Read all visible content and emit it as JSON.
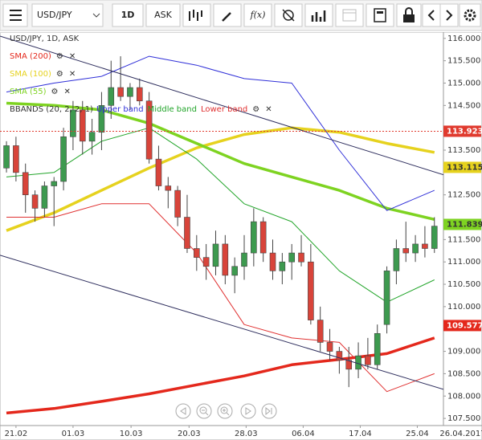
{
  "toolbar": {
    "symbol": "USD/JPY",
    "timeframe": "1D",
    "side": "ASK",
    "function": "f(x)"
  },
  "chart_data": {
    "type": "candlestick",
    "title": "USD/JPY, 1D, ASK",
    "xlim": [
      -0.68,
      45.95
    ],
    "ylim": [
      107.34,
      116.14
    ],
    "xticks": [
      {
        "value": 1,
        "label": "21.02"
      },
      {
        "value": 7,
        "label": "01.03"
      },
      {
        "value": 13.1,
        "label": "10.03"
      },
      {
        "value": 19.2,
        "label": "20.03"
      },
      {
        "value": 25.2,
        "label": "28.03"
      },
      {
        "value": 31.2,
        "label": "06.04"
      },
      {
        "value": 37.2,
        "label": "17.04"
      },
      {
        "value": 43.2,
        "label": "25.04"
      }
    ],
    "end_date": "26.04.2017",
    "yticks": [
      {
        "value": 107.5,
        "label": "107.500"
      },
      {
        "value": 108,
        "label": "108.000"
      },
      {
        "value": 108.5,
        "label": "108.500"
      },
      {
        "value": 109,
        "label": "109.000"
      },
      {
        "value": 110,
        "label": "110.000"
      },
      {
        "value": 110.5,
        "label": "110.500"
      },
      {
        "value": 111,
        "label": "111.000"
      },
      {
        "value": 111.5,
        "label": "111.500"
      },
      {
        "value": 112.5,
        "label": "112.500"
      },
      {
        "value": 113.5,
        "label": "113.500"
      },
      {
        "value": 114.5,
        "label": "114.500"
      },
      {
        "value": 115,
        "label": "115.000"
      },
      {
        "value": 115.5,
        "label": "115.500"
      },
      {
        "value": 116,
        "label": "116.000"
      }
    ],
    "up_color": "#3d9a4f",
    "down_color": "#d8443a",
    "open": [
      113.1,
      113.6,
      113.0,
      112.5,
      112.2,
      112.7,
      112.8,
      113.8,
      114.4,
      113.7,
      113.9,
      114.5,
      114.9,
      114.7,
      114.9,
      114.6,
      113.3,
      112.7,
      112.6,
      112.0,
      111.3,
      111.1,
      110.9,
      111.4,
      110.7,
      110.9,
      111.2,
      111.9,
      111.2,
      110.8,
      111.0,
      111.2,
      111.0,
      109.7,
      109.2,
      109.0,
      108.8,
      108.6,
      108.9,
      108.7,
      109.6,
      110.8,
      111.3,
      111.2,
      111.4,
      111.3
    ],
    "high": [
      113.7,
      113.8,
      113.2,
      112.6,
      112.8,
      112.9,
      114.0,
      114.6,
      114.6,
      114.2,
      114.8,
      115.5,
      115.6,
      115.0,
      115.1,
      114.8,
      113.6,
      112.9,
      112.7,
      112.5,
      111.6,
      111.4,
      111.7,
      111.6,
      111.1,
      111.6,
      112.2,
      112.0,
      111.5,
      111.2,
      111.4,
      111.6,
      111.4,
      110.0,
      109.5,
      109.1,
      109.1,
      109.2,
      109.3,
      109.6,
      110.9,
      111.5,
      111.9,
      111.6,
      111.8,
      112.0
    ],
    "low": [
      113.0,
      112.8,
      112.1,
      111.9,
      112.0,
      111.8,
      112.6,
      113.5,
      113.4,
      113.4,
      113.5,
      114.2,
      114.6,
      114.4,
      114.5,
      113.2,
      112.6,
      112.2,
      111.8,
      111.2,
      110.8,
      110.6,
      110.7,
      110.5,
      110.3,
      110.6,
      110.9,
      111.0,
      110.6,
      110.5,
      110.6,
      110.9,
      109.6,
      109.0,
      108.8,
      108.5,
      108.2,
      108.4,
      108.6,
      108.6,
      109.4,
      110.5,
      111.0,
      111.0,
      111.1,
      111.2
    ],
    "close": [
      113.6,
      113.0,
      112.5,
      112.2,
      112.7,
      112.8,
      113.8,
      114.4,
      113.7,
      113.9,
      114.5,
      114.9,
      114.7,
      114.9,
      114.6,
      113.3,
      112.7,
      112.6,
      112.0,
      111.3,
      111.1,
      110.9,
      111.4,
      110.7,
      110.9,
      111.2,
      111.9,
      111.2,
      110.8,
      111.0,
      111.2,
      111.0,
      109.7,
      109.2,
      109.0,
      108.8,
      108.6,
      108.9,
      108.7,
      109.4,
      110.8,
      111.3,
      111.2,
      111.4,
      111.3,
      111.8
    ],
    "indicators": [
      {
        "name": "SMA (200)",
        "color": "#e4281c",
        "x": [
          0,
          5,
          10,
          15,
          20,
          25,
          30,
          35,
          40,
          45
        ],
        "values": [
          107.62,
          107.72,
          107.88,
          108.05,
          108.25,
          108.45,
          108.7,
          108.82,
          108.95,
          109.3
        ]
      },
      {
        "name": "SMA (100)",
        "color": "#e6d21e",
        "x": [
          0,
          5,
          10,
          15,
          20,
          25,
          30,
          35,
          40,
          45
        ],
        "values": [
          111.7,
          112.1,
          112.6,
          113.1,
          113.55,
          113.85,
          114.0,
          113.9,
          113.65,
          113.45
        ]
      },
      {
        "name": "SMA (55)",
        "color": "#7ed321",
        "x": [
          0,
          5,
          10,
          15,
          20,
          25,
          30,
          35,
          40,
          45
        ],
        "values": [
          114.55,
          114.5,
          114.4,
          114.1,
          113.65,
          113.2,
          112.9,
          112.6,
          112.2,
          111.95
        ]
      }
    ],
    "bbands": {
      "name": "BBANDS (20, 2, 2, 1)",
      "series": [
        {
          "name": "Upper band",
          "color": "#3030d8",
          "x": [
            0,
            5,
            10,
            15,
            20,
            25,
            30,
            35,
            40,
            45
          ],
          "values": [
            114.8,
            115.0,
            115.15,
            115.6,
            115.4,
            115.1,
            115.0,
            113.5,
            112.15,
            112.6
          ]
        },
        {
          "name": "Middle band",
          "color": "#22a52a",
          "x": [
            0,
            5,
            10,
            15,
            20,
            25,
            30,
            35,
            40,
            45
          ],
          "values": [
            112.9,
            113.0,
            113.7,
            114.0,
            113.3,
            112.3,
            111.9,
            110.8,
            110.1,
            110.6
          ]
        },
        {
          "name": "Lower band",
          "color": "#e03030",
          "x": [
            0,
            5,
            10,
            15,
            20,
            25,
            30,
            35,
            40,
            45
          ],
          "values": [
            112.0,
            112.0,
            112.3,
            112.3,
            111.2,
            109.6,
            109.3,
            109.2,
            108.1,
            108.5
          ]
        }
      ]
    },
    "trendlines": [
      {
        "color": "#2f2f5e",
        "x": [
          -0.68,
          45.95
        ],
        "values": [
          116.05,
          112.95
        ]
      },
      {
        "color": "#2f2f5e",
        "x": [
          -0.68,
          45.95
        ],
        "values": [
          111.15,
          108.15
        ]
      }
    ],
    "price_tags": [
      {
        "value": 113.923,
        "color": "#e03a2e",
        "text_color": "#ffffff",
        "dashed": true
      },
      {
        "value": 113.115,
        "color": "#e6d21e",
        "text_color": "#333333"
      },
      {
        "value": 111.839,
        "color": "#7ed321",
        "text_color": "#333333"
      },
      {
        "value": 109.577,
        "color": "#e4281c",
        "text_color": "#ffffff"
      }
    ]
  }
}
